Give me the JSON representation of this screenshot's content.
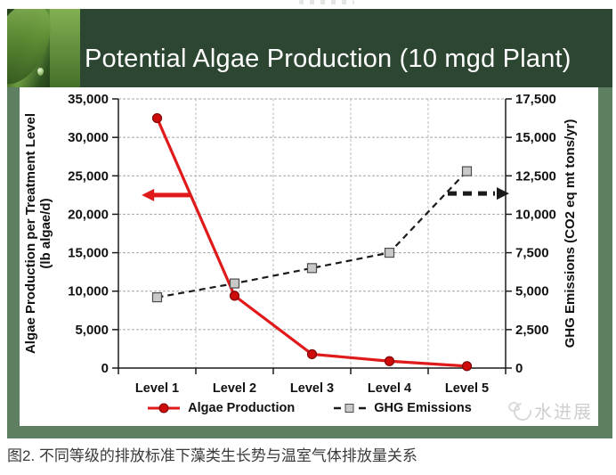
{
  "page": {
    "caption": "图2. 不同等级的排放标准下藻类生长势与温室气体排放量关系"
  },
  "slide": {
    "title": "Potential Algae Production (10 mgd Plant)",
    "watermark_text": "水进展",
    "banner_color": "#2d4632",
    "frame_color": "#5e7f62"
  },
  "chart_data": {
    "type": "line",
    "categories": [
      "Level 1",
      "Level 2",
      "Level 3",
      "Level 4",
      "Level 5"
    ],
    "series": [
      {
        "name": "Algae Production",
        "axis": "left",
        "color": "#e01a1a",
        "marker": "circle",
        "marker_fill": "#cf0a0a",
        "line_style": "solid",
        "values": [
          32500,
          9400,
          1800,
          900,
          250
        ]
      },
      {
        "name": "GHG Emissions",
        "axis": "right",
        "color": "#1a1a1a",
        "marker": "square",
        "marker_fill": "#c9c9c9",
        "line_style": "dashed",
        "values": [
          4600,
          5500,
          6500,
          7500,
          12800
        ]
      }
    ],
    "left_axis": {
      "title_line1": "Algae Production per Treatment Level",
      "title_line2": "(lb algae/d)",
      "min": 0,
      "max": 35000,
      "step": 5000,
      "tick_labels": [
        "0",
        "5,000",
        "10,000",
        "15,000",
        "20,000",
        "25,000",
        "30,000",
        "35,000"
      ]
    },
    "right_axis": {
      "title": "GHG Emissions (CO2 eq mt tons/yr)",
      "min": 0,
      "max": 17500,
      "step": 2500,
      "tick_labels": [
        "0",
        "2,500",
        "5,000",
        "7,500",
        "10,000",
        "12,500",
        "15,000",
        "17,500"
      ]
    },
    "annotations": [
      {
        "type": "arrow",
        "direction": "left",
        "axis": "left",
        "value": 22500,
        "color": "#e01a1a",
        "style": "solid"
      },
      {
        "type": "arrow",
        "direction": "right",
        "axis": "right",
        "value": 11350,
        "color": "#1a1a1a",
        "style": "dashed"
      }
    ],
    "legend_position": "bottom",
    "grid": true
  }
}
